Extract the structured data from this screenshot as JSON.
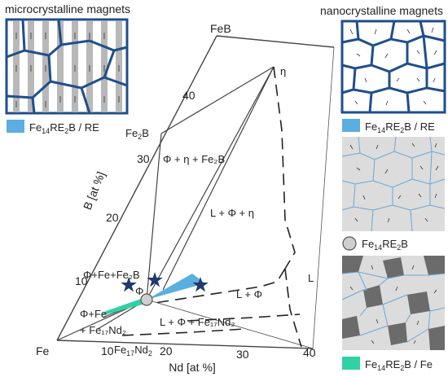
{
  "headers": {
    "left": "microcrystalline magnets",
    "right": "nanocrystalline magnets"
  },
  "legends": {
    "micro": {
      "main": "Fe",
      "sub1": "14",
      "mid": "RE",
      "sub2": "2",
      "tail": "B / RE",
      "color": "#5aaee0"
    },
    "nano_top": {
      "main": "Fe",
      "sub1": "14",
      "mid": "RE",
      "sub2": "2",
      "tail": "B / RE",
      "color": "#5aaee0"
    },
    "nano_mid": {
      "main": "Fe",
      "sub1": "14",
      "mid": "RE",
      "sub2": "2",
      "tail": "B",
      "color": "#cfcfcf"
    },
    "nano_bot": {
      "main": "Fe",
      "sub1": "14",
      "mid": "RE",
      "sub2": "2",
      "tail": "B / Fe",
      "color": "#2fd2a4"
    }
  },
  "diagram": {
    "corners": {
      "fe": "Fe",
      "feb": "FeB"
    },
    "axes": {
      "b_label": "B [at %]",
      "nd_label": "Nd [at %]",
      "b_ticks": [
        "10",
        "20",
        "30",
        "40"
      ],
      "nd_ticks": [
        "10",
        "20",
        "30",
        "40"
      ]
    },
    "points": {
      "fe2b": {
        "main": "Fe",
        "sub": "2",
        "tail": "B"
      },
      "eta": "η",
      "fe17nd2": {
        "main": "Fe",
        "sub1": "17",
        "mid": "Nd",
        "sub2": "2"
      }
    },
    "regions": {
      "phi_eta_fe2b": "Φ + η + Fe₂B",
      "l_phi_eta": "L + Φ + η",
      "phi_fe_fe2b": "Φ+Fe+Fe₂B",
      "phi": "Φ",
      "l_phi": "L + Φ",
      "l": "L",
      "l_phi_fe17nd2": "L + Φ + Fe₁₇Nd₂",
      "phi_fe": "Φ+Fe",
      "fe17nd2_left": "+ Fe₁₇Nd₂"
    },
    "colors": {
      "blue": "#5aaee0",
      "green": "#2fd2a4",
      "navy": "#1f3a6e",
      "grain_edge": "#1f4e8c"
    }
  }
}
